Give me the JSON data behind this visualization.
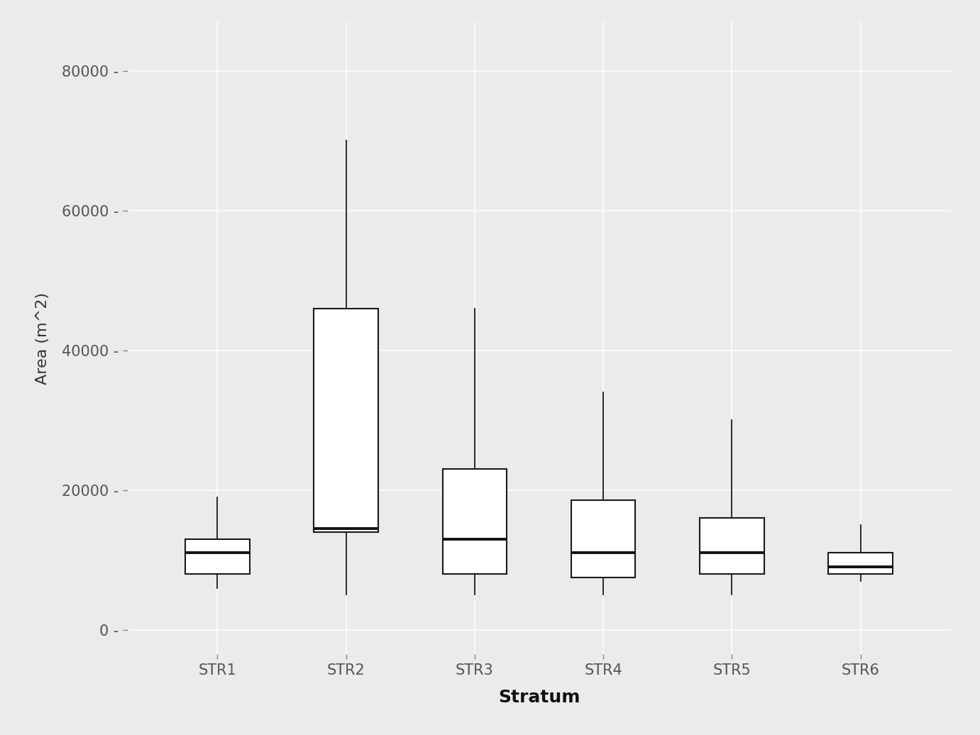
{
  "categories": [
    "STR1",
    "STR2",
    "STR3",
    "STR4",
    "STR5",
    "STR6"
  ],
  "xlabel": "Stratum",
  "ylabel": "Area (m^2)",
  "ylim": [
    -3500,
    87000
  ],
  "yticks": [
    0,
    20000,
    40000,
    60000,
    80000
  ],
  "ytick_labels": [
    "0 -",
    "20000 -",
    "40000 -",
    "60000 -",
    "80000 -"
  ],
  "background_color": "#EBEBEB",
  "box_facecolor": "#FFFFFF",
  "box_edgecolor": "#1a1a1a",
  "median_color": "#111111",
  "whisker_color": "#1a1a1a",
  "xlabel_fontsize": 18,
  "ylabel_fontsize": 16,
  "tick_fontsize": 15,
  "boxes": [
    {
      "q1": 8000,
      "median": 11000,
      "q3": 13000,
      "whislo": 6000,
      "whishi": 19000
    },
    {
      "q1": 14000,
      "median": 14500,
      "q3": 46000,
      "whislo": 5000,
      "whishi": 70000
    },
    {
      "q1": 8000,
      "median": 13000,
      "q3": 23000,
      "whislo": 5000,
      "whishi": 46000
    },
    {
      "q1": 7500,
      "median": 11000,
      "q3": 18500,
      "whislo": 5000,
      "whishi": 34000
    },
    {
      "q1": 8000,
      "median": 11000,
      "q3": 16000,
      "whislo": 5000,
      "whishi": 30000
    },
    {
      "q1": 8000,
      "median": 9000,
      "q3": 11000,
      "whislo": 7000,
      "whishi": 15000
    }
  ]
}
